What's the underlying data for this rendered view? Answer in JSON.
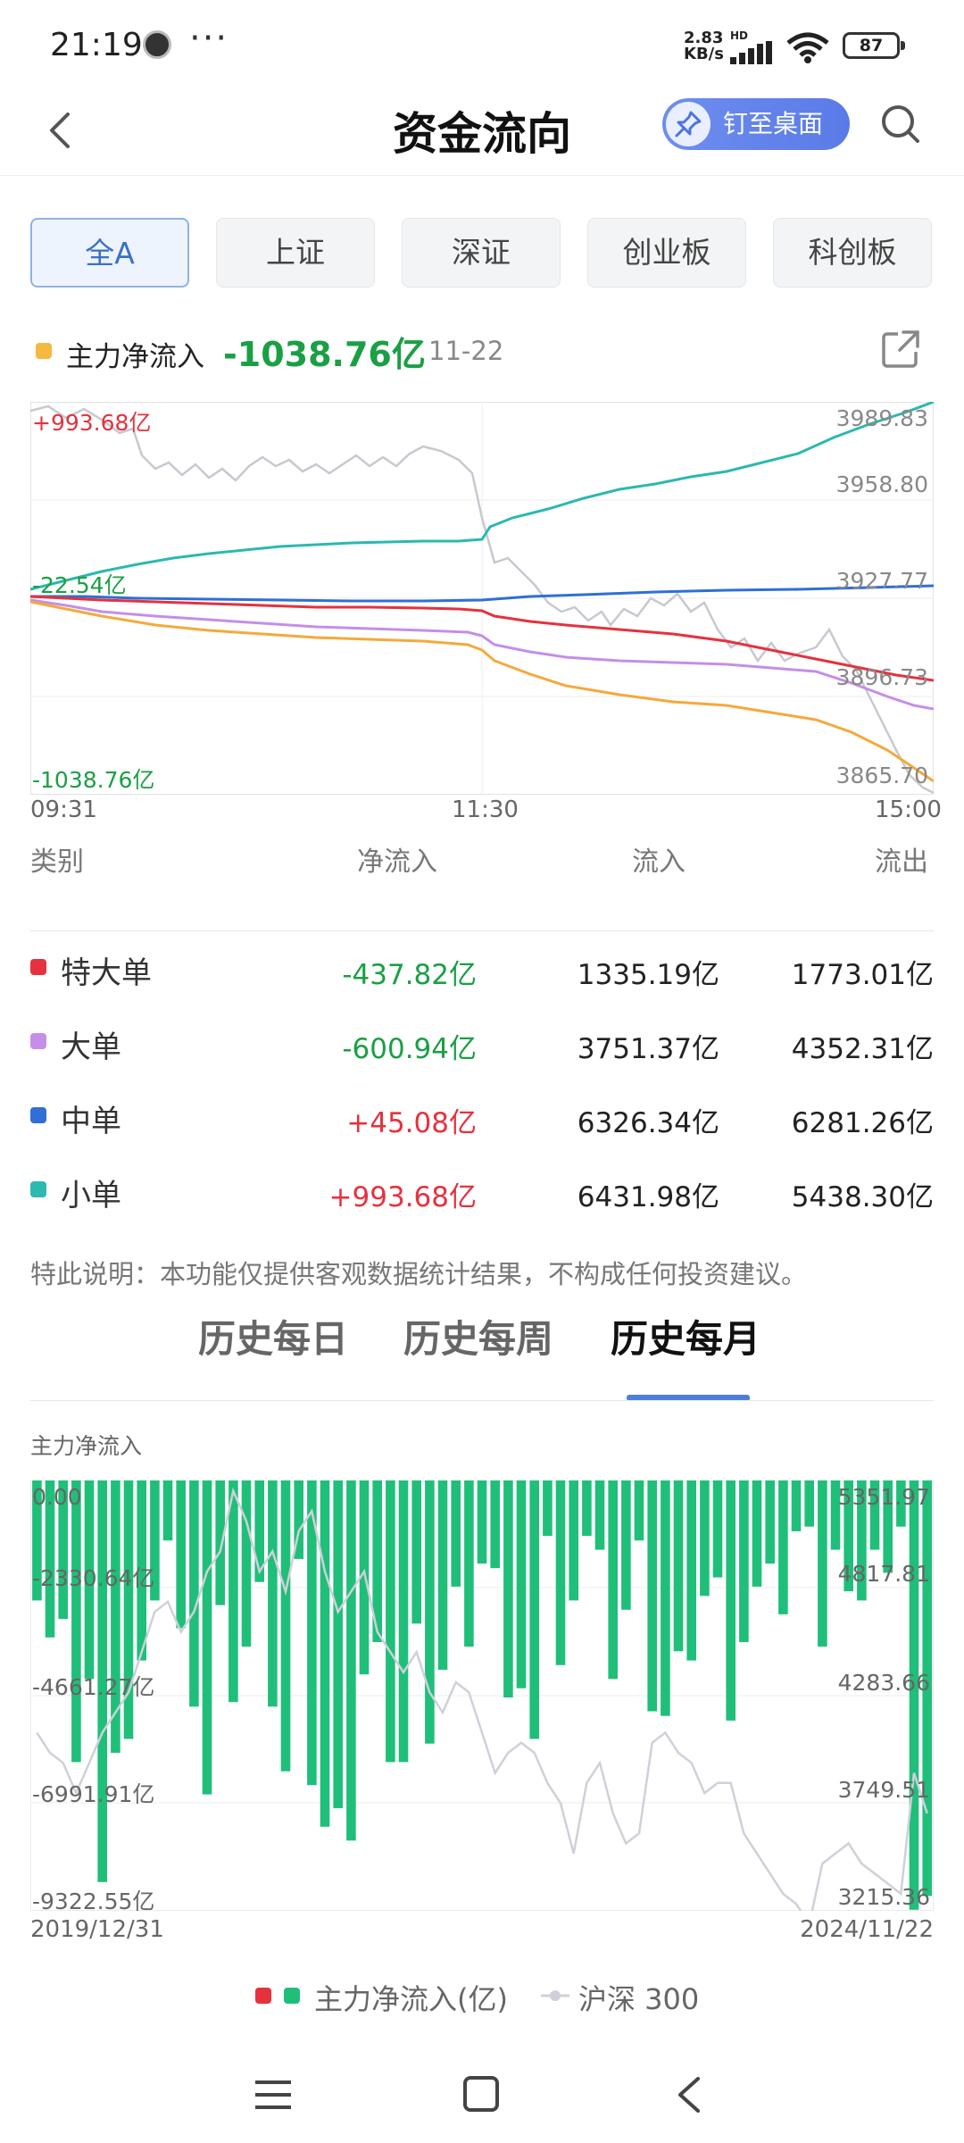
{
  "status_bar": {
    "time": "21:19",
    "more": "···",
    "net_speed_value": "2.83",
    "net_speed_unit": "KB/s",
    "hd": "HD",
    "battery": "87"
  },
  "header": {
    "title": "资金流向",
    "pin_label": "钉至桌面"
  },
  "market_tabs": [
    {
      "label": "全A",
      "active": true
    },
    {
      "label": "上证",
      "active": false
    },
    {
      "label": "深证",
      "active": false
    },
    {
      "label": "创业板",
      "active": false
    },
    {
      "label": "科创板",
      "active": false
    }
  ],
  "intraday": {
    "legend_label": "主力净流入",
    "legend_value": "-1038.76亿",
    "date": "11-22",
    "left_labels": {
      "top": "+993.68亿",
      "mid": "-22.54亿",
      "bottom": "-1038.76亿"
    },
    "right_ticks": [
      "3989.83",
      "3958.80",
      "3927.77",
      "3896.73",
      "3865.70"
    ],
    "x_ticks": [
      "09:31",
      "11:30",
      "15:00"
    ],
    "colors": {
      "super": "#e5323e",
      "large": "#c58ee8",
      "medium": "#2f6fd6",
      "small": "#2bb9b0",
      "main": "#f5a93a",
      "index": "#c8c8d0"
    }
  },
  "table": {
    "headers": [
      "类别",
      "净流入",
      "流入",
      "流出"
    ],
    "rows": [
      {
        "name": "特大单",
        "color": "#e5323e",
        "net": "-437.82亿",
        "net_color": "#1b9f45",
        "in": "1335.19亿",
        "out": "1773.01亿"
      },
      {
        "name": "大单",
        "color": "#c58ee8",
        "net": "-600.94亿",
        "net_color": "#1b9f45",
        "in": "3751.37亿",
        "out": "4352.31亿"
      },
      {
        "name": "中单",
        "color": "#2f6fd6",
        "net": "+45.08亿",
        "net_color": "#e5323e",
        "in": "6326.34亿",
        "out": "6281.26亿"
      },
      {
        "name": "小单",
        "color": "#2bb9b0",
        "net": "+993.68亿",
        "net_color": "#e5323e",
        "in": "6431.98亿",
        "out": "5438.30亿"
      }
    ]
  },
  "note": "特此说明：本功能仅提供客观数据统计结果，不构成任何投资建议。",
  "history_tabs": [
    {
      "label": "历史每日",
      "active": false
    },
    {
      "label": "历史每周",
      "active": false
    },
    {
      "label": "历史每月",
      "active": true
    }
  ],
  "monthly": {
    "label": "主力净流入",
    "left_ticks": [
      "0.00",
      "-2330.64亿",
      "-4661.27亿",
      "-6991.91亿",
      "-9322.55亿"
    ],
    "right_ticks": [
      "5351.97",
      "4817.81",
      "4283.66",
      "3749.51",
      "3215.36"
    ],
    "x_start": "2019/12/31",
    "x_end": "2024/11/22",
    "legend_bar": "主力净流入(亿)",
    "legend_line": "沪深 300",
    "bar_color": "#1fbf7a",
    "bar_color_red": "#e5323e"
  },
  "chart_data": {
    "type": "bar",
    "title": "主力净流入",
    "x_start": "2019/12/31",
    "x_end": "2024/11/22",
    "ylim": [
      -9322.55,
      0
    ],
    "ylim_right": [
      3215.36,
      5351.97
    ],
    "series": [
      {
        "name": "主力净流入(亿)",
        "type": "bar",
        "values": [
          -2600,
          -3400,
          -3000,
          -6100,
          -4300,
          -8700,
          -5900,
          -5600,
          -3900,
          -2600,
          -1300,
          -3200,
          -4900,
          -6800,
          -2700,
          -4800,
          -3600,
          -2200,
          -4900,
          -6300,
          -1700,
          -6600,
          -7500,
          -7100,
          -7800,
          -4200,
          -3500,
          -6100,
          -6100,
          -3100,
          -5700,
          -4100,
          -2300,
          -3600,
          -1800,
          -1900,
          -4700,
          -4500,
          -5600,
          -1200,
          -4000,
          -2600,
          -1200,
          -1500,
          -4300,
          -2800,
          -1300,
          -5000,
          -5100,
          -3700,
          -3900,
          -2500,
          -2100,
          -5200,
          -3500,
          -2300,
          -1800,
          -2900,
          -1100,
          -1000,
          -3600,
          -1500,
          -2400,
          -2600,
          -1500,
          -2000,
          -1000,
          -9300,
          -9000
        ]
      },
      {
        "name": "沪深 300",
        "type": "line",
        "values": [
          4100,
          4000,
          3950,
          3800,
          3950,
          4100,
          4200,
          4300,
          4500,
          4700,
          4750,
          4600,
          4700,
          4900,
          5000,
          5300,
          5150,
          4900,
          5000,
          4800,
          5100,
          5200,
          4900,
          4700,
          4800,
          4900,
          4600,
          4500,
          4400,
          4500,
          4300,
          4200,
          4350,
          4300,
          4100,
          3900,
          4000,
          4050,
          4000,
          3850,
          3750,
          3500,
          3850,
          3950,
          3700,
          3550,
          3600,
          4050,
          4100,
          4000,
          3950,
          3800,
          3850,
          3850,
          3600,
          3500,
          3400,
          3300,
          3250,
          3150,
          3450,
          3500,
          3550,
          3450,
          3400,
          3350,
          3300,
          3900,
          3700
        ]
      }
    ]
  }
}
